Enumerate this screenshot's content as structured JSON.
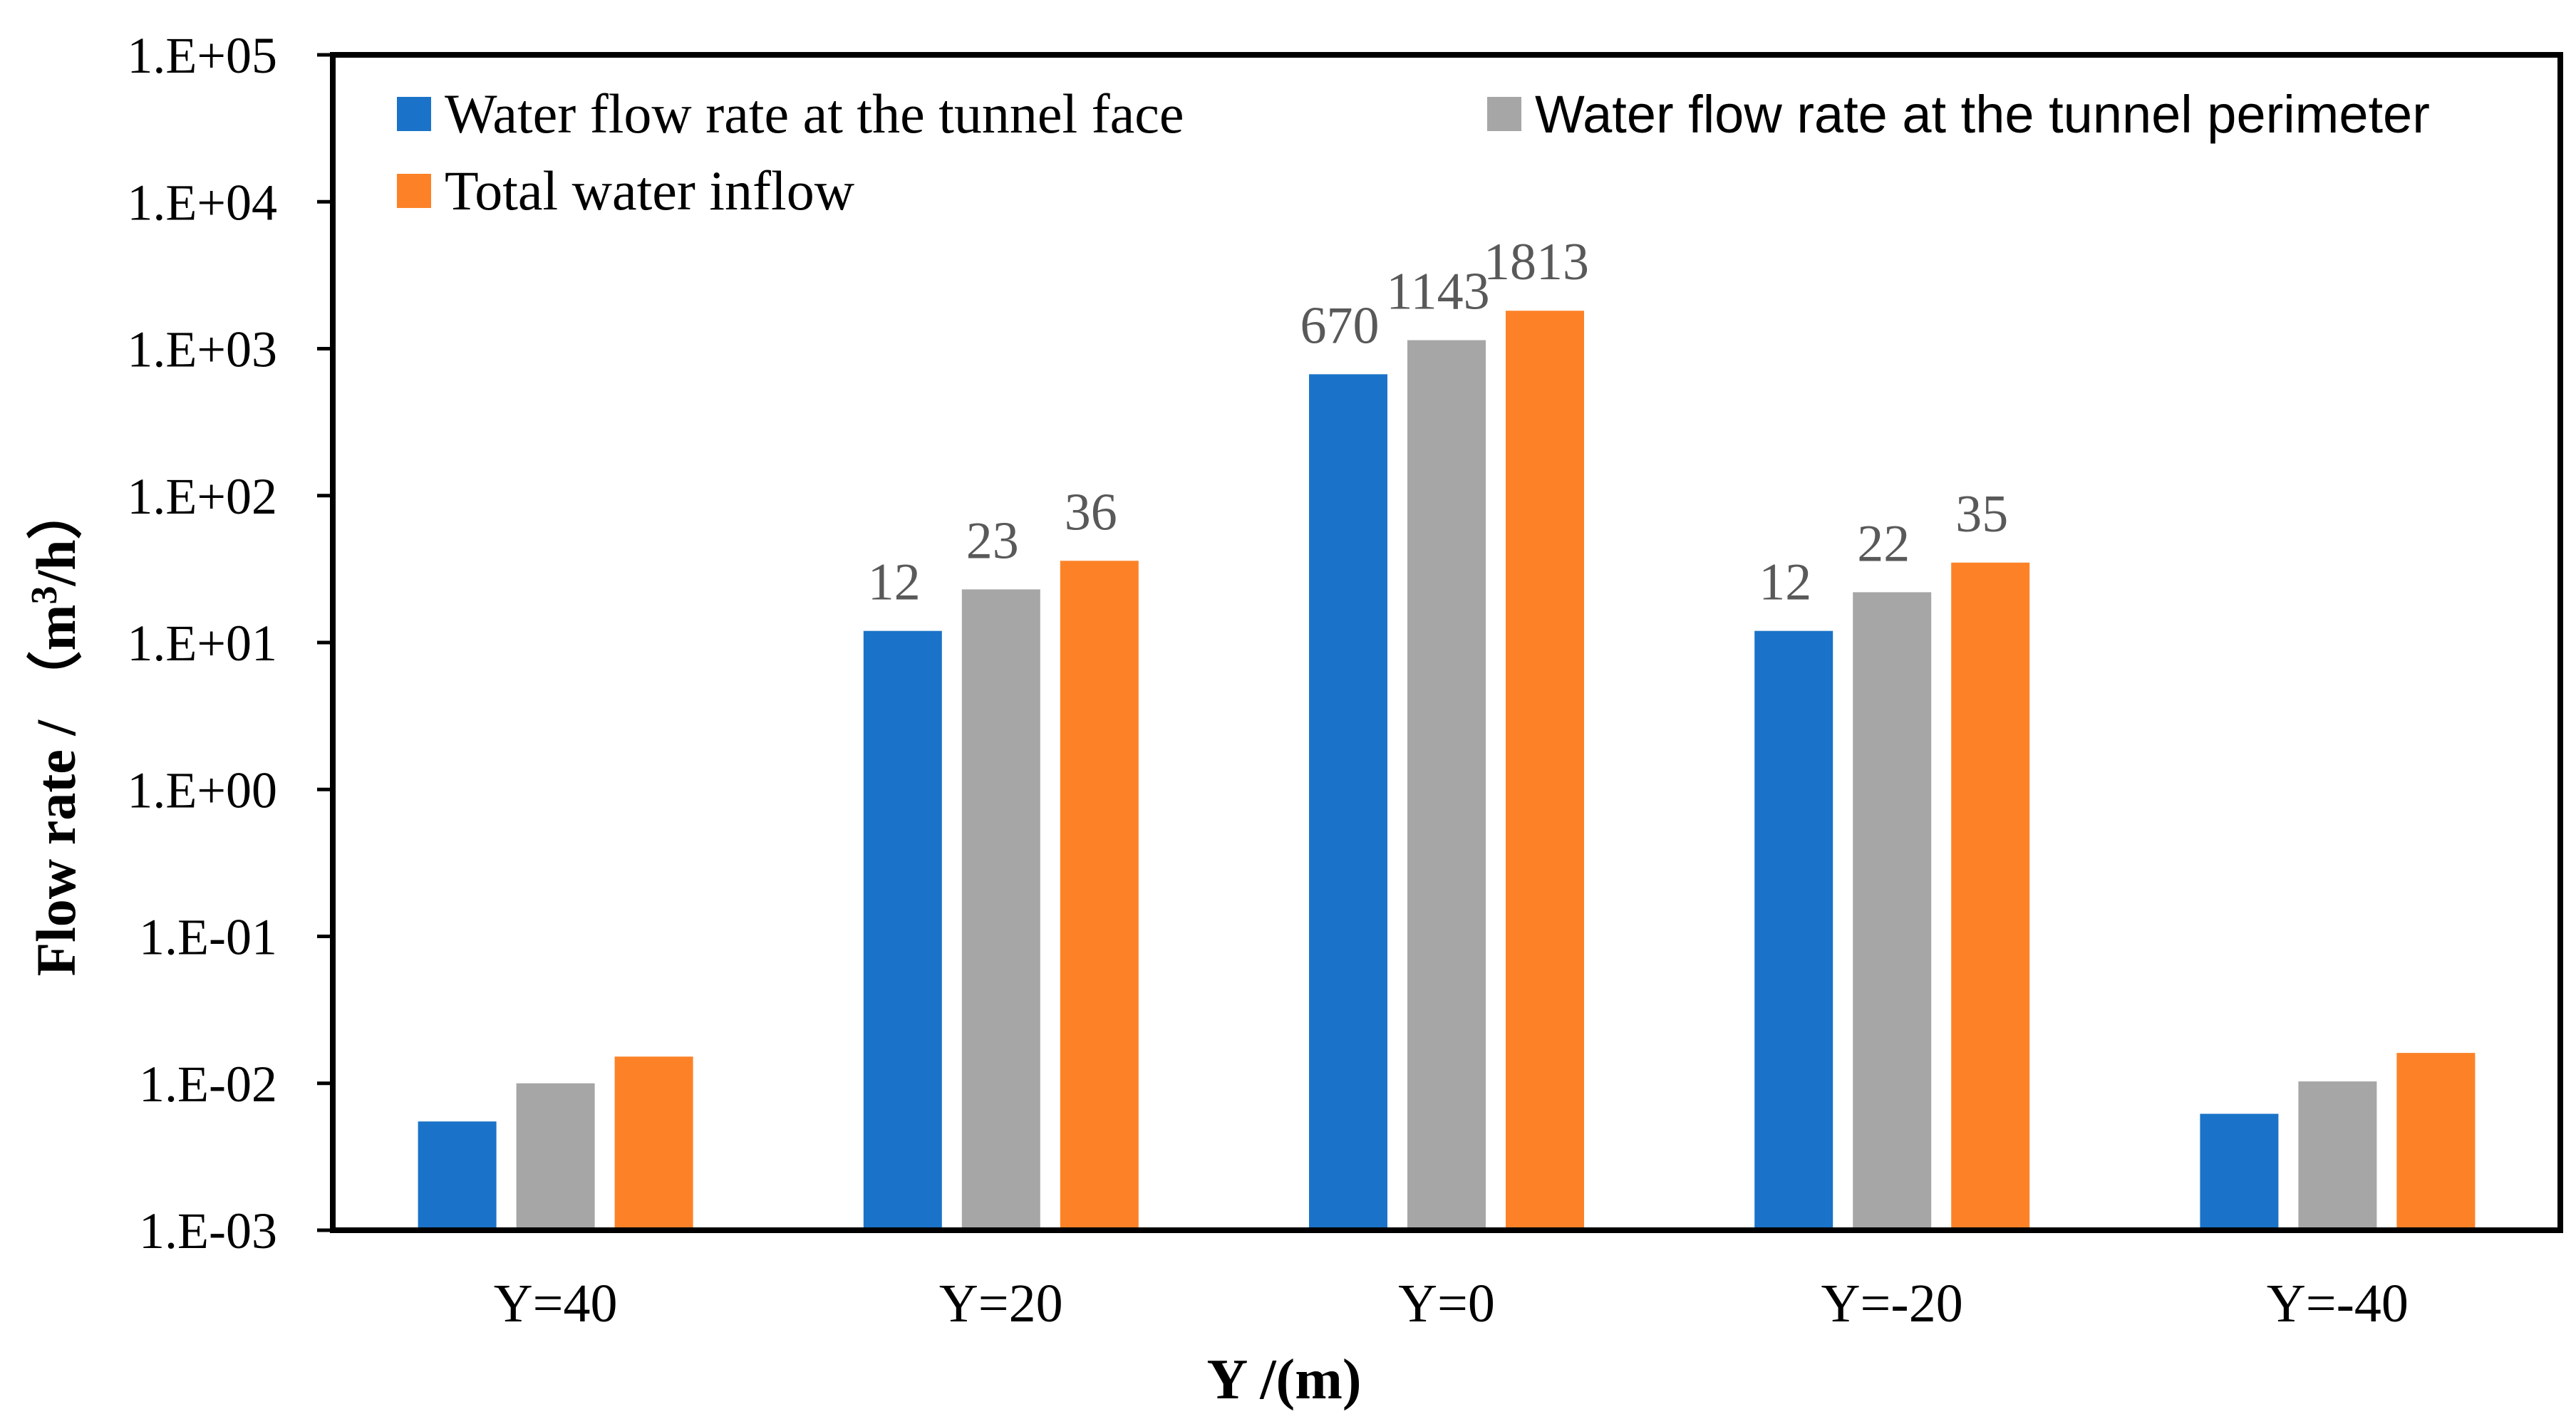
{
  "chart_data": {
    "type": "bar",
    "scale": "log",
    "title": "",
    "xlabel": "Y /(m)",
    "ylabel_parts": {
      "prefix": "Flow rate / （m",
      "sup": "3",
      "suffix": "/h）"
    },
    "ylim": [
      0.001,
      100000
    ],
    "ytick_values": [
      0.001,
      0.01,
      0.1,
      1,
      10,
      100,
      1000,
      10000,
      100000
    ],
    "ytick_labels": [
      "1.E-03",
      "1.E-02",
      "1.E-01",
      "1.E+00",
      "1.E+01",
      "1.E+02",
      "1.E+03",
      "1.E+04",
      "1.E+05"
    ],
    "categories": [
      "Y=40",
      "Y=20",
      "Y=0",
      "Y=-20",
      "Y=-40"
    ],
    "series": [
      {
        "name": "Water flow rate at the tunnel face",
        "color": "#1a73c8",
        "values": [
          0.0055,
          12,
          670,
          12,
          0.0062
        ],
        "labels": [
          "",
          "12",
          "670",
          "12",
          ""
        ]
      },
      {
        "name": "Water flow rate at the tunnel perimeter",
        "color": "#a6a6a6",
        "values": [
          0.01,
          23,
          1143,
          22,
          0.0103
        ],
        "labels": [
          "",
          "23",
          "1143",
          "22",
          ""
        ]
      },
      {
        "name": "Total water inflow",
        "color": "#fd8227",
        "values": [
          0.0152,
          36,
          1813,
          35,
          0.0161
        ],
        "labels": [
          "",
          "36",
          "1813",
          "35",
          ""
        ]
      }
    ],
    "legend": "top-left, inside plot",
    "data_label_color": "#595959",
    "grid": false
  }
}
